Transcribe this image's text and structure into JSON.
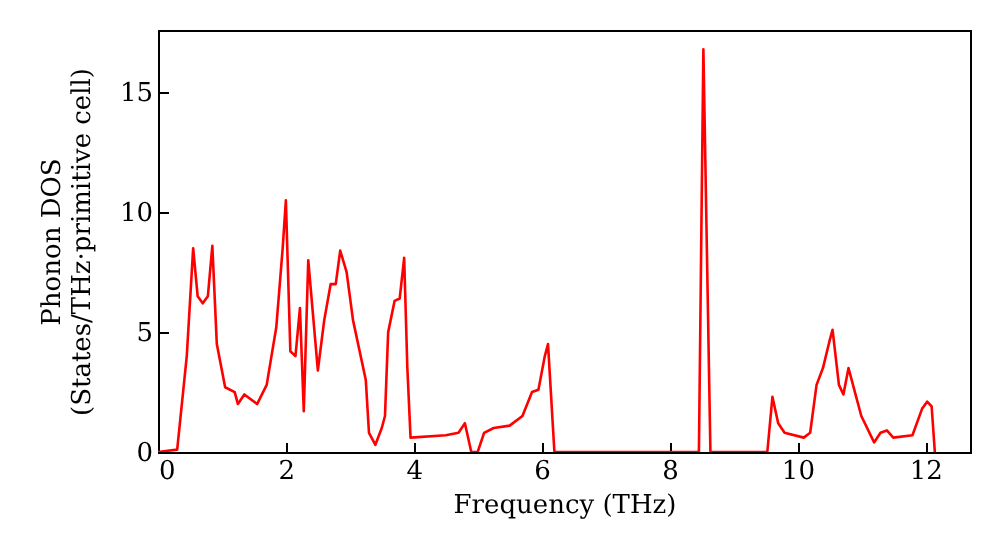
{
  "chart_data": {
    "type": "line",
    "xlabel": "Frequency (THz)",
    "ylabel": "Phonon DOS\n(States/THz·primitive cell)",
    "xlim": [
      0,
      12.7
    ],
    "ylim": [
      0,
      17.6
    ],
    "xticks": [
      0,
      2,
      4,
      6,
      8,
      10,
      12
    ],
    "yticks": [
      0,
      5,
      10,
      15
    ],
    "grid": false,
    "series": [
      {
        "color": "#ff0000",
        "x": [
          0,
          0.3,
          0.45,
          0.55,
          0.62,
          0.7,
          0.78,
          0.85,
          0.92,
          1.05,
          1.2,
          1.25,
          1.35,
          1.55,
          1.7,
          1.85,
          1.95,
          2.0,
          2.07,
          2.15,
          2.22,
          2.28,
          2.35,
          2.5,
          2.6,
          2.7,
          2.78,
          2.85,
          2.95,
          3.05,
          3.25,
          3.3,
          3.4,
          3.5,
          3.55,
          3.6,
          3.7,
          3.78,
          3.85,
          3.9,
          3.95,
          4.5,
          4.7,
          4.8,
          4.9,
          5.0,
          5.1,
          5.25,
          5.5,
          5.7,
          5.85,
          5.95,
          6.05,
          6.1,
          6.2,
          8.46,
          8.53,
          8.64,
          9.53,
          9.61,
          9.7,
          9.8,
          10.1,
          10.2,
          10.3,
          10.4,
          10.5,
          10.55,
          10.65,
          10.72,
          10.8,
          10.9,
          11.0,
          11.2,
          11.3,
          11.4,
          11.5,
          11.8,
          11.95,
          12.03,
          12.1,
          12.15
        ],
        "values": [
          0,
          0.1,
          4,
          8.5,
          6.5,
          6.2,
          6.5,
          8.6,
          4.5,
          2.7,
          2.5,
          2.0,
          2.4,
          2.0,
          2.8,
          5.2,
          8.5,
          10.5,
          4.2,
          4.0,
          6.0,
          1.7,
          8.0,
          3.4,
          5.5,
          7.0,
          7.0,
          8.4,
          7.5,
          5.5,
          3.0,
          0.8,
          0.3,
          1.0,
          1.5,
          5.0,
          6.3,
          6.4,
          8.1,
          3.5,
          0.6,
          0.7,
          0.8,
          1.2,
          0,
          0,
          0.8,
          1.0,
          1.1,
          1.5,
          2.5,
          2.6,
          4.0,
          4.5,
          0,
          0,
          16.8,
          0,
          0,
          2.3,
          1.2,
          0.8,
          0.6,
          0.8,
          2.8,
          3.5,
          4.6,
          5.1,
          2.8,
          2.4,
          3.5,
          2.5,
          1.5,
          0.4,
          0.8,
          0.9,
          0.6,
          0.7,
          1.8,
          2.1,
          1.9,
          0
        ]
      }
    ]
  }
}
